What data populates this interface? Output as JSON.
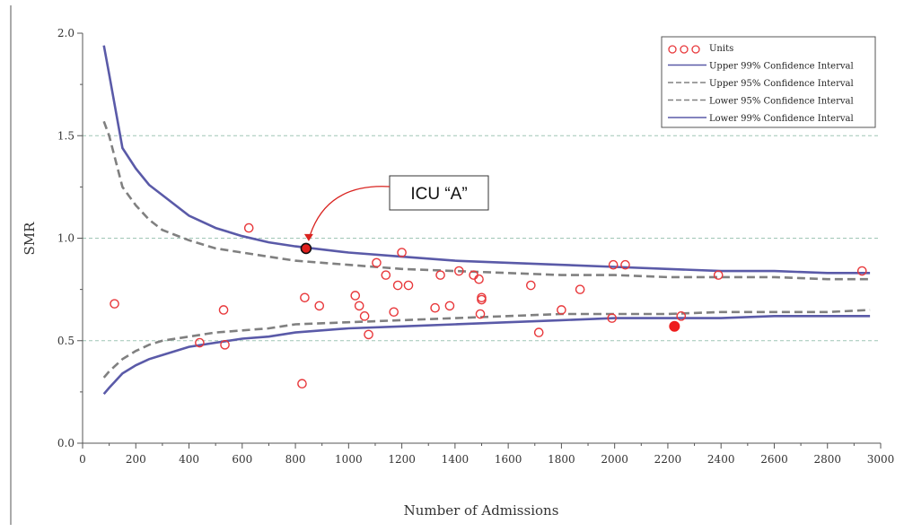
{
  "chart_data": {
    "type": "scatter",
    "xlabel": "Number of Admissions",
    "ylabel": "SMR",
    "xlim": [
      0,
      3000
    ],
    "ylim": [
      0,
      2.0
    ],
    "x_ticks": [
      "0",
      "200",
      "400",
      "600",
      "800",
      "1000",
      "1200",
      "1400",
      "1600",
      "1800",
      "2000",
      "2200",
      "2400",
      "2600",
      "2800",
      "3000"
    ],
    "y_ticks": [
      "0.0",
      "0.5",
      "1.0",
      "1.5",
      "2.0"
    ],
    "gridlines_y": [
      0.5,
      1.0,
      1.5
    ],
    "legend_position": "top-right",
    "legend": {
      "units": "Units",
      "upper99": "Upper 99% Confidence Interval",
      "upper95": "Upper 95% Confidence Interval",
      "lower95": "Lower 95% Confidence Interval",
      "lower99": "Lower 99% Confidence Interval"
    },
    "colors": {
      "units": "#e8383b",
      "ci99": "#5a5aa8",
      "ci95": "#808080",
      "grid": "#9fc6b5",
      "highlight": "#ee1c1c"
    },
    "units": [
      {
        "x": 120,
        "y": 0.68
      },
      {
        "x": 440,
        "y": 0.49
      },
      {
        "x": 530,
        "y": 0.65
      },
      {
        "x": 535,
        "y": 0.48
      },
      {
        "x": 625,
        "y": 1.05
      },
      {
        "x": 825,
        "y": 0.29
      },
      {
        "x": 835,
        "y": 0.71
      },
      {
        "x": 890,
        "y": 0.67
      },
      {
        "x": 1025,
        "y": 0.72
      },
      {
        "x": 1040,
        "y": 0.67
      },
      {
        "x": 1060,
        "y": 0.62
      },
      {
        "x": 1075,
        "y": 0.53
      },
      {
        "x": 1105,
        "y": 0.88
      },
      {
        "x": 1140,
        "y": 0.82
      },
      {
        "x": 1170,
        "y": 0.64
      },
      {
        "x": 1185,
        "y": 0.77
      },
      {
        "x": 1200,
        "y": 0.93
      },
      {
        "x": 1225,
        "y": 0.77
      },
      {
        "x": 1325,
        "y": 0.66
      },
      {
        "x": 1345,
        "y": 0.82
      },
      {
        "x": 1380,
        "y": 0.67
      },
      {
        "x": 1415,
        "y": 0.84
      },
      {
        "x": 1470,
        "y": 0.82
      },
      {
        "x": 1490,
        "y": 0.8
      },
      {
        "x": 1495,
        "y": 0.63
      },
      {
        "x": 1500,
        "y": 0.71
      },
      {
        "x": 1500,
        "y": 0.7
      },
      {
        "x": 1685,
        "y": 0.77
      },
      {
        "x": 1715,
        "y": 0.54
      },
      {
        "x": 1800,
        "y": 0.65
      },
      {
        "x": 1870,
        "y": 0.75
      },
      {
        "x": 1990,
        "y": 0.61
      },
      {
        "x": 1995,
        "y": 0.87
      },
      {
        "x": 2040,
        "y": 0.87
      },
      {
        "x": 2250,
        "y": 0.62
      },
      {
        "x": 2390,
        "y": 0.82
      },
      {
        "x": 2930,
        "y": 0.84
      }
    ],
    "filled_unit": {
      "x": 2225,
      "y": 0.57
    },
    "highlighted_unit": {
      "x": 840,
      "y": 0.95,
      "label": "ICU “A”"
    },
    "upper99": [
      {
        "x": 80,
        "y": 1.94
      },
      {
        "x": 100,
        "y": 1.8
      },
      {
        "x": 150,
        "y": 1.44
      },
      {
        "x": 200,
        "y": 1.34
      },
      {
        "x": 250,
        "y": 1.26
      },
      {
        "x": 300,
        "y": 1.21
      },
      {
        "x": 400,
        "y": 1.11
      },
      {
        "x": 500,
        "y": 1.05
      },
      {
        "x": 600,
        "y": 1.01
      },
      {
        "x": 700,
        "y": 0.98
      },
      {
        "x": 800,
        "y": 0.96
      },
      {
        "x": 1000,
        "y": 0.93
      },
      {
        "x": 1200,
        "y": 0.91
      },
      {
        "x": 1400,
        "y": 0.89
      },
      {
        "x": 1600,
        "y": 0.88
      },
      {
        "x": 1800,
        "y": 0.87
      },
      {
        "x": 2000,
        "y": 0.86
      },
      {
        "x": 2200,
        "y": 0.85
      },
      {
        "x": 2400,
        "y": 0.84
      },
      {
        "x": 2600,
        "y": 0.84
      },
      {
        "x": 2800,
        "y": 0.83
      },
      {
        "x": 2960,
        "y": 0.83
      }
    ],
    "upper95": [
      {
        "x": 80,
        "y": 1.57
      },
      {
        "x": 100,
        "y": 1.5
      },
      {
        "x": 150,
        "y": 1.25
      },
      {
        "x": 200,
        "y": 1.16
      },
      {
        "x": 250,
        "y": 1.09
      },
      {
        "x": 300,
        "y": 1.04
      },
      {
        "x": 400,
        "y": 0.99
      },
      {
        "x": 500,
        "y": 0.95
      },
      {
        "x": 600,
        "y": 0.93
      },
      {
        "x": 700,
        "y": 0.91
      },
      {
        "x": 800,
        "y": 0.89
      },
      {
        "x": 1000,
        "y": 0.87
      },
      {
        "x": 1200,
        "y": 0.85
      },
      {
        "x": 1400,
        "y": 0.84
      },
      {
        "x": 1600,
        "y": 0.83
      },
      {
        "x": 1800,
        "y": 0.82
      },
      {
        "x": 2000,
        "y": 0.82
      },
      {
        "x": 2200,
        "y": 0.81
      },
      {
        "x": 2400,
        "y": 0.81
      },
      {
        "x": 2600,
        "y": 0.81
      },
      {
        "x": 2800,
        "y": 0.8
      },
      {
        "x": 2960,
        "y": 0.8
      }
    ],
    "lower95": [
      {
        "x": 80,
        "y": 0.32
      },
      {
        "x": 100,
        "y": 0.35
      },
      {
        "x": 150,
        "y": 0.41
      },
      {
        "x": 200,
        "y": 0.45
      },
      {
        "x": 250,
        "y": 0.48
      },
      {
        "x": 300,
        "y": 0.5
      },
      {
        "x": 400,
        "y": 0.52
      },
      {
        "x": 500,
        "y": 0.54
      },
      {
        "x": 600,
        "y": 0.55
      },
      {
        "x": 700,
        "y": 0.56
      },
      {
        "x": 800,
        "y": 0.58
      },
      {
        "x": 1000,
        "y": 0.59
      },
      {
        "x": 1200,
        "y": 0.6
      },
      {
        "x": 1400,
        "y": 0.61
      },
      {
        "x": 1600,
        "y": 0.62
      },
      {
        "x": 1800,
        "y": 0.63
      },
      {
        "x": 2000,
        "y": 0.63
      },
      {
        "x": 2200,
        "y": 0.63
      },
      {
        "x": 2400,
        "y": 0.64
      },
      {
        "x": 2600,
        "y": 0.64
      },
      {
        "x": 2800,
        "y": 0.64
      },
      {
        "x": 2960,
        "y": 0.65
      }
    ],
    "lower99": [
      {
        "x": 80,
        "y": 0.24
      },
      {
        "x": 100,
        "y": 0.27
      },
      {
        "x": 150,
        "y": 0.34
      },
      {
        "x": 200,
        "y": 0.38
      },
      {
        "x": 250,
        "y": 0.41
      },
      {
        "x": 300,
        "y": 0.43
      },
      {
        "x": 400,
        "y": 0.47
      },
      {
        "x": 500,
        "y": 0.49
      },
      {
        "x": 600,
        "y": 0.51
      },
      {
        "x": 700,
        "y": 0.52
      },
      {
        "x": 800,
        "y": 0.54
      },
      {
        "x": 1000,
        "y": 0.56
      },
      {
        "x": 1200,
        "y": 0.57
      },
      {
        "x": 1400,
        "y": 0.58
      },
      {
        "x": 1600,
        "y": 0.59
      },
      {
        "x": 1800,
        "y": 0.6
      },
      {
        "x": 2000,
        "y": 0.61
      },
      {
        "x": 2200,
        "y": 0.61
      },
      {
        "x": 2400,
        "y": 0.61
      },
      {
        "x": 2600,
        "y": 0.62
      },
      {
        "x": 2800,
        "y": 0.62
      },
      {
        "x": 2960,
        "y": 0.62
      }
    ]
  }
}
